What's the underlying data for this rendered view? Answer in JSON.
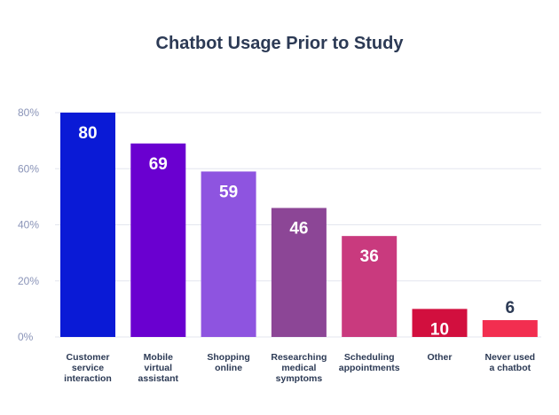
{
  "chart_data": {
    "type": "bar",
    "title": "Chatbot Usage Prior to Study",
    "xlabel": "",
    "ylabel": "",
    "ylim": [
      0,
      80
    ],
    "yticks": [
      "0%",
      "20%",
      "40%",
      "60%",
      "80%"
    ],
    "ytick_values": [
      0,
      20,
      40,
      60,
      80
    ],
    "grid": true,
    "categories": [
      [
        "Customer",
        "service",
        "interaction"
      ],
      [
        "Mobile",
        "virtual",
        "assistant"
      ],
      [
        "Shopping",
        "online"
      ],
      [
        "Researching",
        "medical",
        "symptoms"
      ],
      [
        "Scheduling",
        "appointments"
      ],
      [
        "Other"
      ],
      [
        "Never used",
        "a chatbot"
      ]
    ],
    "values": [
      80,
      69,
      59,
      46,
      36,
      10,
      6
    ],
    "colors": [
      "#0a1ad6",
      "#6a00d0",
      "#8e54e0",
      "#8c4696",
      "#c93a7e",
      "#d20f3e",
      "#f22e50"
    ],
    "label_colors": [
      "#ffffff",
      "#ffffff",
      "#ffffff",
      "#ffffff",
      "#ffffff",
      "#ffffff",
      "#2c3a55"
    ],
    "label_positions": [
      "inside",
      "inside",
      "inside",
      "inside",
      "inside",
      "inside",
      "above"
    ]
  }
}
